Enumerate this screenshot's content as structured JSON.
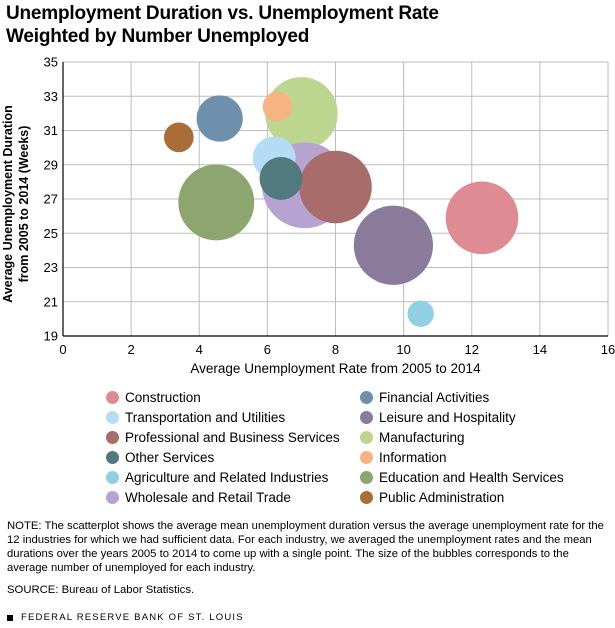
{
  "header": {
    "title_line1": "Unemployment Duration vs. Unemployment Rate",
    "title_line2": "Weighted by Number Unemployed"
  },
  "chart_data": {
    "type": "scatter",
    "title": "Unemployment Duration vs. Unemployment Rate Weighted by Number Unemployed",
    "xlabel": "Average Unemployment Rate from 2005 to 2014",
    "ylabel_line1": "Average Unemployment Duration",
    "ylabel_line2": "from 2005 to 2014 (Weeks)",
    "xlim": [
      0,
      16
    ],
    "ylim": [
      19,
      35
    ],
    "xticks": [
      "0",
      "2",
      "4",
      "6",
      "8",
      "10",
      "12",
      "14",
      "16"
    ],
    "yticks": [
      "19",
      "21",
      "23",
      "25",
      "27",
      "29",
      "31",
      "33",
      "35"
    ],
    "grid": true,
    "series": [
      {
        "name": "Manufacturing",
        "x": 7.0,
        "y": 32.0,
        "size": 1.1,
        "color": "#bcd68f"
      },
      {
        "name": "Wholesale and Retail Trade",
        "x": 7.1,
        "y": 27.8,
        "size": 1.3,
        "color": "#b7a3d2"
      },
      {
        "name": "Education and Health Services",
        "x": 4.5,
        "y": 26.8,
        "size": 1.15,
        "color": "#8da56f"
      },
      {
        "name": "Professional and Business Services",
        "x": 8.0,
        "y": 27.7,
        "size": 1.1,
        "color": "#a86c6a"
      },
      {
        "name": "Leisure and Hospitality",
        "x": 9.7,
        "y": 24.3,
        "size": 1.2,
        "color": "#8a7b9b"
      },
      {
        "name": "Construction",
        "x": 12.3,
        "y": 25.9,
        "size": 1.1,
        "color": "#df8b94"
      },
      {
        "name": "Transportation and Utilities",
        "x": 6.2,
        "y": 29.4,
        "size": 0.65,
        "color": "#b4dcf4"
      },
      {
        "name": "Financial Activities",
        "x": 4.6,
        "y": 31.7,
        "size": 0.7,
        "color": "#6e90ad"
      },
      {
        "name": "Other Services",
        "x": 6.4,
        "y": 28.2,
        "size": 0.65,
        "color": "#52797e"
      },
      {
        "name": "Information",
        "x": 6.3,
        "y": 32.4,
        "size": 0.45,
        "color": "#f8b384"
      },
      {
        "name": "Public Administration",
        "x": 3.4,
        "y": 30.6,
        "size": 0.45,
        "color": "#a96e37"
      },
      {
        "name": "Agriculture and Related Industries",
        "x": 10.5,
        "y": 20.3,
        "size": 0.4,
        "color": "#8fd1e3"
      }
    ]
  },
  "legend": [
    {
      "label": "Construction",
      "color": "#df8b94"
    },
    {
      "label": "Financial Activities",
      "color": "#6e90ad"
    },
    {
      "label": "Transportation and Utilities",
      "color": "#b4dcf4"
    },
    {
      "label": "Leisure and Hospitality",
      "color": "#8a7b9b"
    },
    {
      "label": "Professional and Business Services",
      "color": "#a86c6a"
    },
    {
      "label": "Manufacturing",
      "color": "#bcd68f"
    },
    {
      "label": "Other Services",
      "color": "#52797e"
    },
    {
      "label": "Information",
      "color": "#f8b384"
    },
    {
      "label": "Agriculture and Related Industries",
      "color": "#8fd1e3"
    },
    {
      "label": "Education and Health Services",
      "color": "#8da56f"
    },
    {
      "label": "Wholesale and Retail Trade",
      "color": "#b7a3d2"
    },
    {
      "label": "Public Administration",
      "color": "#a96e37"
    }
  ],
  "note": "NOTE: The scatterplot shows the average mean unemployment duration versus the average unemployment rate for the 12 industries for which we had sufficient data. For each industry, we averaged the unemployment rates and the mean durations over the years 2005 to 2014 to come up with a single point. The size of the bubbles corresponds to the average number of unemployed for each industry.",
  "source": "SOURCE: Bureau of Labor Statistics.",
  "footer": "FEDERAL RESERVE BANK OF ST. LOUIS"
}
